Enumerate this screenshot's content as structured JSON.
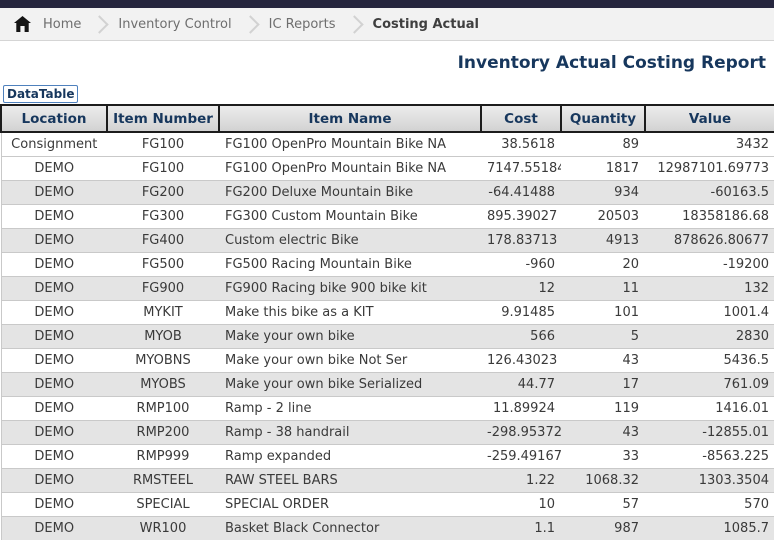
{
  "breadcrumb": {
    "items": [
      {
        "label": "Home",
        "current": false
      },
      {
        "label": "Inventory Control",
        "current": false
      },
      {
        "label": "IC Reports",
        "current": false
      },
      {
        "label": "Costing Actual",
        "current": true
      }
    ]
  },
  "page": {
    "title": "Inventory Actual Costing Report"
  },
  "datatable": {
    "label": "DataTable",
    "columns": [
      "Location",
      "Item Number",
      "Item Name",
      "Cost",
      "Quantity",
      "Value"
    ],
    "rows": [
      {
        "location": "Consignment",
        "item_number": "FG100",
        "item_name": "FG100 OpenPro Mountain Bike NA",
        "cost": "38.5618",
        "quantity": "89",
        "value": "3432"
      },
      {
        "location": "DEMO",
        "item_number": "FG100",
        "item_name": "FG100 OpenPro Mountain Bike NA",
        "cost": "7147.55184",
        "quantity": "1817",
        "value": "12987101.69773"
      },
      {
        "location": "DEMO",
        "item_number": "FG200",
        "item_name": "FG200 Deluxe Mountain Bike",
        "cost": "-64.41488",
        "quantity": "934",
        "value": "-60163.5"
      },
      {
        "location": "DEMO",
        "item_number": "FG300",
        "item_name": "FG300 Custom Mountain Bike",
        "cost": "895.39027",
        "quantity": "20503",
        "value": "18358186.68"
      },
      {
        "location": "DEMO",
        "item_number": "FG400",
        "item_name": "Custom electric Bike",
        "cost": "178.83713",
        "quantity": "4913",
        "value": "878626.80677"
      },
      {
        "location": "DEMO",
        "item_number": "FG500",
        "item_name": "FG500 Racing Mountain Bike",
        "cost": "-960",
        "quantity": "20",
        "value": "-19200"
      },
      {
        "location": "DEMO",
        "item_number": "FG900",
        "item_name": "FG900 Racing bike 900 bike kit",
        "cost": "12",
        "quantity": "11",
        "value": "132"
      },
      {
        "location": "DEMO",
        "item_number": "MYKIT",
        "item_name": "Make this bike as a KIT",
        "cost": "9.91485",
        "quantity": "101",
        "value": "1001.4"
      },
      {
        "location": "DEMO",
        "item_number": "MYOB",
        "item_name": "Make your own bike",
        "cost": "566",
        "quantity": "5",
        "value": "2830"
      },
      {
        "location": "DEMO",
        "item_number": "MYOBNS",
        "item_name": "Make your own bike Not Ser",
        "cost": "126.43023",
        "quantity": "43",
        "value": "5436.5"
      },
      {
        "location": "DEMO",
        "item_number": "MYOBS",
        "item_name": "Make your own bike Serialized",
        "cost": "44.77",
        "quantity": "17",
        "value": "761.09"
      },
      {
        "location": "DEMO",
        "item_number": "RMP100",
        "item_name": "Ramp - 2 line",
        "cost": "11.89924",
        "quantity": "119",
        "value": "1416.01"
      },
      {
        "location": "DEMO",
        "item_number": "RMP200",
        "item_name": "Ramp - 38 handrail",
        "cost": "-298.95372",
        "quantity": "43",
        "value": "-12855.01"
      },
      {
        "location": "DEMO",
        "item_number": "RMP999",
        "item_name": "Ramp expanded",
        "cost": "-259.49167",
        "quantity": "33",
        "value": "-8563.225"
      },
      {
        "location": "DEMO",
        "item_number": "RMSTEEL",
        "item_name": "RAW STEEL BARS",
        "cost": "1.22",
        "quantity": "1068.32",
        "value": "1303.3504"
      },
      {
        "location": "DEMO",
        "item_number": "SPECIAL",
        "item_name": "SPECIAL ORDER",
        "cost": "10",
        "quantity": "57",
        "value": "570"
      },
      {
        "location": "DEMO",
        "item_number": "WR100",
        "item_name": "Basket Black Connector",
        "cost": "1.1",
        "quantity": "987",
        "value": "1085.7"
      }
    ]
  },
  "colors": {
    "top_strip": "#26263e",
    "breadcrumb_bg": "#f2f2f2",
    "title_navy": "#17375d",
    "datatable_border_blue": "#4f81bd",
    "header_bg": "#d9d9d9",
    "row_stripe": "#e4e4e4"
  }
}
